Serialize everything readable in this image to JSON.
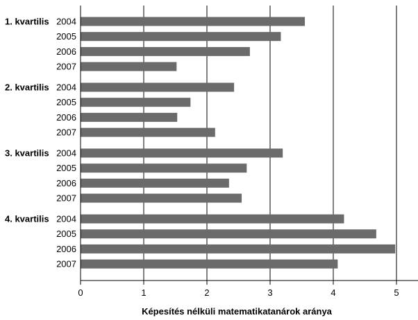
{
  "chart_data": {
    "type": "bar",
    "orientation": "horizontal",
    "xlabel": "Képesítés nélküli matematikatanárok aránya",
    "xlim": [
      0,
      5.35
    ],
    "xticks": [
      "0",
      "1",
      "2",
      "3",
      "4",
      "5"
    ],
    "grid": true,
    "groups": [
      {
        "label": "1. kvartilis",
        "bars": [
          {
            "year": "2004",
            "value": 3.55
          },
          {
            "year": "2005",
            "value": 3.17
          },
          {
            "year": "2006",
            "value": 2.68
          },
          {
            "year": "2007",
            "value": 1.52
          }
        ]
      },
      {
        "label": "2. kvartilis",
        "bars": [
          {
            "year": "2004",
            "value": 2.43
          },
          {
            "year": "2005",
            "value": 1.74
          },
          {
            "year": "2006",
            "value": 1.53
          },
          {
            "year": "2007",
            "value": 2.13
          }
        ]
      },
      {
        "label": "3. kvartilis",
        "bars": [
          {
            "year": "2004",
            "value": 3.2
          },
          {
            "year": "2005",
            "value": 2.63
          },
          {
            "year": "2006",
            "value": 2.35
          },
          {
            "year": "2007",
            "value": 2.55
          }
        ]
      },
      {
        "label": "4. kvartilis",
        "bars": [
          {
            "year": "2004",
            "value": 4.17
          },
          {
            "year": "2005",
            "value": 4.68
          },
          {
            "year": "2006",
            "value": 4.98
          },
          {
            "year": "2007",
            "value": 4.07
          }
        ]
      }
    ],
    "colors": {
      "bar": "#6b6b6b",
      "grid": "#000000",
      "axis": "#000000"
    }
  }
}
